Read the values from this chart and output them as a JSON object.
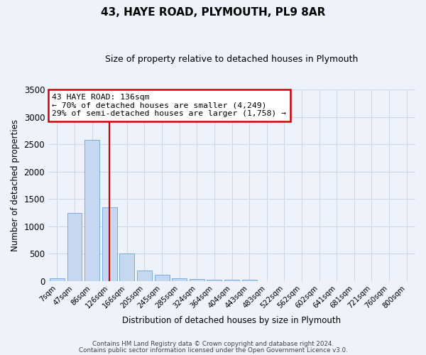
{
  "title": "43, HAYE ROAD, PLYMOUTH, PL9 8AR",
  "subtitle": "Size of property relative to detached houses in Plymouth",
  "xlabel": "Distribution of detached houses by size in Plymouth",
  "ylabel": "Number of detached properties",
  "bar_labels": [
    "7sqm",
    "47sqm",
    "86sqm",
    "126sqm",
    "166sqm",
    "205sqm",
    "245sqm",
    "285sqm",
    "324sqm",
    "364sqm",
    "404sqm",
    "443sqm",
    "483sqm",
    "522sqm",
    "562sqm",
    "602sqm",
    "641sqm",
    "681sqm",
    "721sqm",
    "760sqm",
    "800sqm"
  ],
  "bar_values": [
    50,
    1240,
    2580,
    1350,
    500,
    195,
    110,
    45,
    30,
    20,
    28,
    20,
    0,
    0,
    0,
    0,
    0,
    0,
    0,
    0,
    0
  ],
  "bar_color": "#c5d8f0",
  "bar_edge_color": "#7aace0",
  "property_line_color": "#cc0000",
  "annotation_title": "43 HAYE ROAD: 136sqm",
  "annotation_line1": "← 70% of detached houses are smaller (4,249)",
  "annotation_line2": "29% of semi-detached houses are larger (1,758) →",
  "annotation_box_facecolor": "#ffffff",
  "annotation_box_edgecolor": "#cc0000",
  "ylim": [
    0,
    3500
  ],
  "yticks": [
    0,
    500,
    1000,
    1500,
    2000,
    2500,
    3000,
    3500
  ],
  "footer1": "Contains HM Land Registry data © Crown copyright and database right 2024.",
  "footer2": "Contains public sector information licensed under the Open Government Licence v3.0.",
  "bg_color": "#eef2fa",
  "grid_color": "#d0d8e8"
}
